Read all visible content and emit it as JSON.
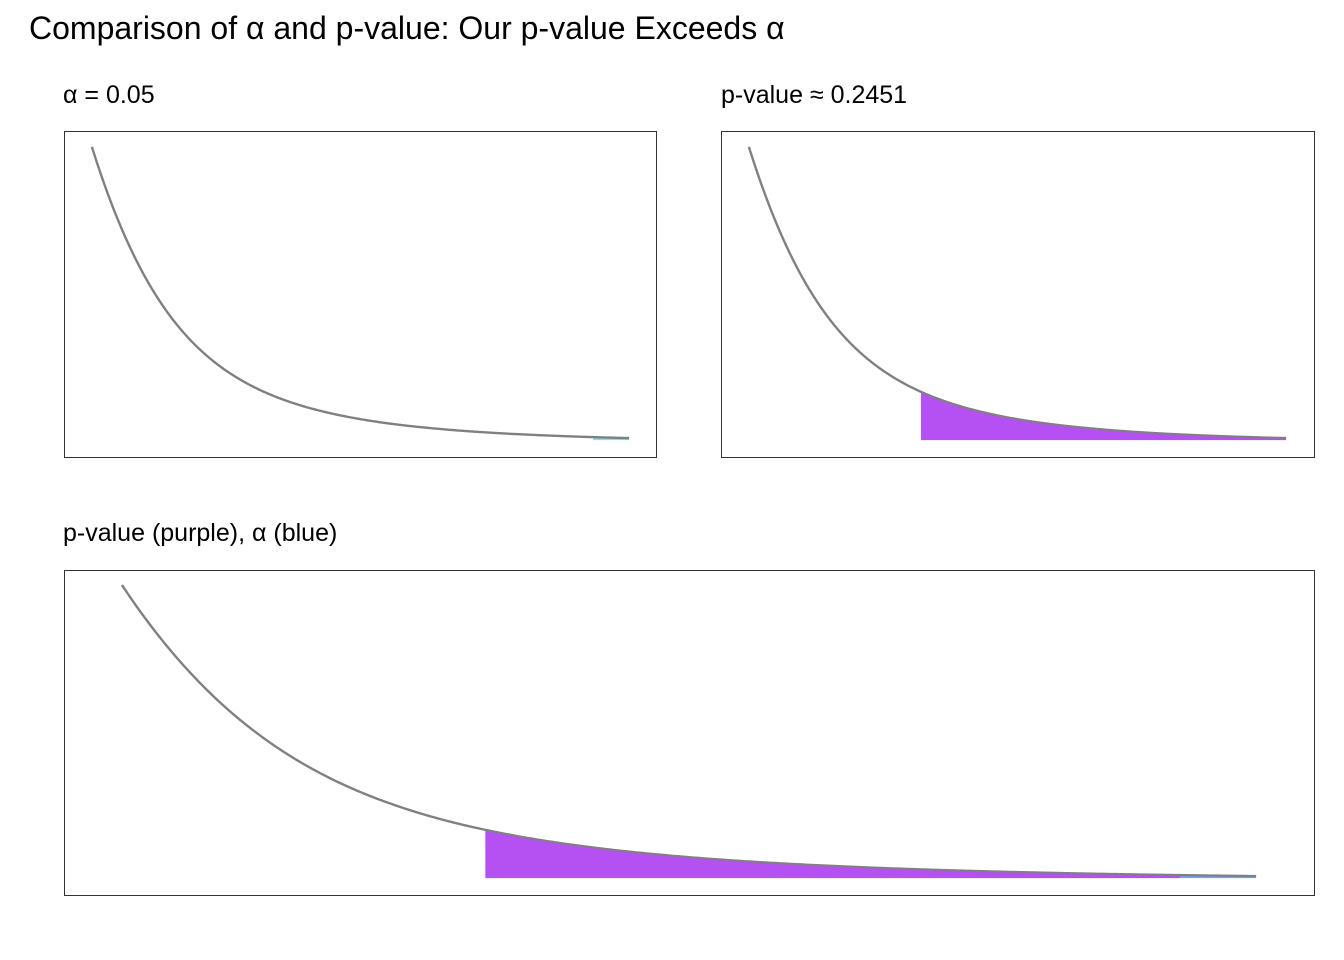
{
  "title": "Comparison of α and p-value: Our p-value Exceeds α",
  "chart_data": [
    {
      "type": "area",
      "title": "α = 0.05",
      "xlabel": "",
      "ylabel": "",
      "distribution": "F",
      "df": [
        1,
        1
      ],
      "xlim": [
        0.5,
        200
      ],
      "series": [
        {
          "name": "",
          "kind": "density-curve",
          "color": "#808080"
        },
        {
          "name": "",
          "kind": "right-tail",
          "area": 0.05,
          "from_x": 161.45,
          "color": "#87CEEB"
        }
      ]
    },
    {
      "type": "area",
      "title": "p-value ≈ 0.2451",
      "xlabel": "",
      "ylabel": "",
      "distribution": "F",
      "df": [
        1,
        1
      ],
      "xlim": [
        0.5,
        200
      ],
      "series": [
        {
          "name": "",
          "kind": "density-curve",
          "color": "#808080"
        },
        {
          "name": "",
          "kind": "right-tail",
          "area": 0.2451,
          "from_x": 9.96,
          "color": "#A020F0"
        }
      ]
    },
    {
      "type": "area",
      "title": "p-value (purple), α (blue)",
      "xlabel": "",
      "ylabel": "",
      "distribution": "F",
      "df": [
        1,
        1
      ],
      "xlim": [
        0.5,
        200
      ],
      "series": [
        {
          "name": "",
          "kind": "density-curve",
          "color": "#808080"
        },
        {
          "name": "",
          "kind": "right-tail",
          "area": 0.2451,
          "from_x": 9.96,
          "color": "#A020F0"
        },
        {
          "name": "",
          "kind": "right-tail",
          "area": 0.05,
          "from_x": 161.45,
          "color": "#6495ED"
        }
      ]
    }
  ]
}
